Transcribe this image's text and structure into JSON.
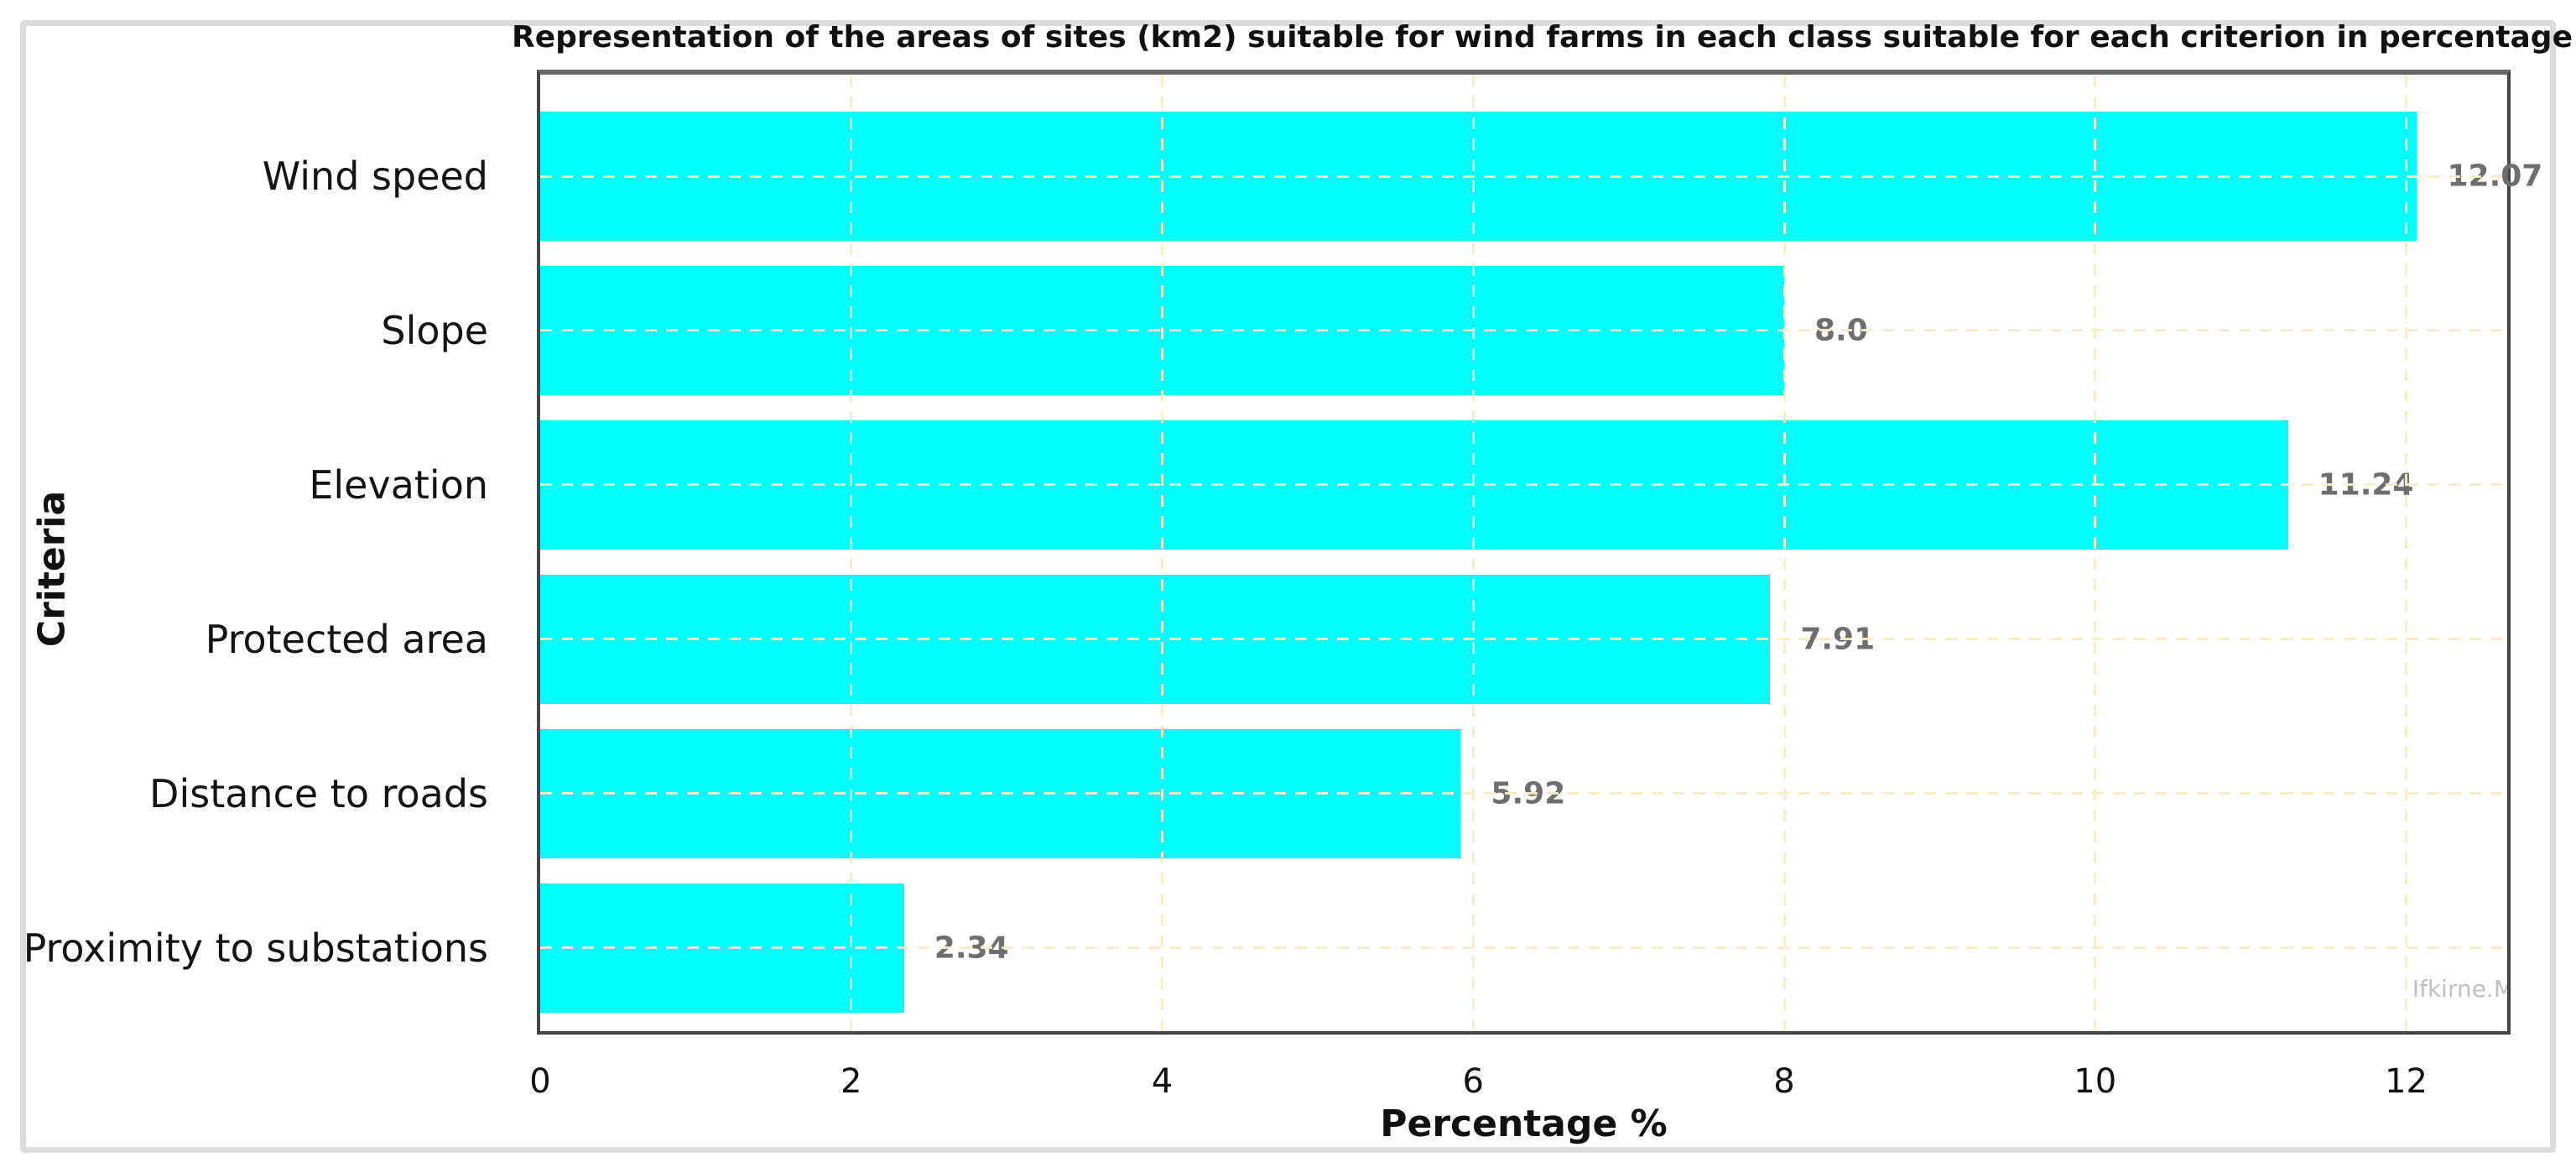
{
  "chart_data": {
    "type": "bar",
    "orientation": "horizontal",
    "title": "Representation of the areas of sites (km2) suitable for wind farms in each class suitable for each criterion in percentage",
    "xlabel": "Percentage %",
    "ylabel": "Criteria",
    "categories": [
      "Wind speed",
      "Slope",
      "Elevation",
      "Protected area",
      "Distance to roads",
      "Proximity to substations"
    ],
    "values": [
      12.07,
      8.0,
      11.24,
      7.91,
      5.92,
      2.34
    ],
    "value_labels": [
      "12.07",
      "8.0",
      "11.24",
      "7.91",
      "5.92",
      "2.34"
    ],
    "xticks": [
      0,
      2,
      4,
      6,
      8,
      10,
      12
    ],
    "xlim": [
      0,
      12.65
    ],
    "grid": "dashed",
    "legend": "none",
    "bar_color": "#00ffff",
    "value_label_color": "#6e6e6e",
    "grid_color": "#f6eec4",
    "spine_color": "#454545",
    "card_border_color": "#dcdcdc",
    "watermark": "Ifkirne.M"
  }
}
